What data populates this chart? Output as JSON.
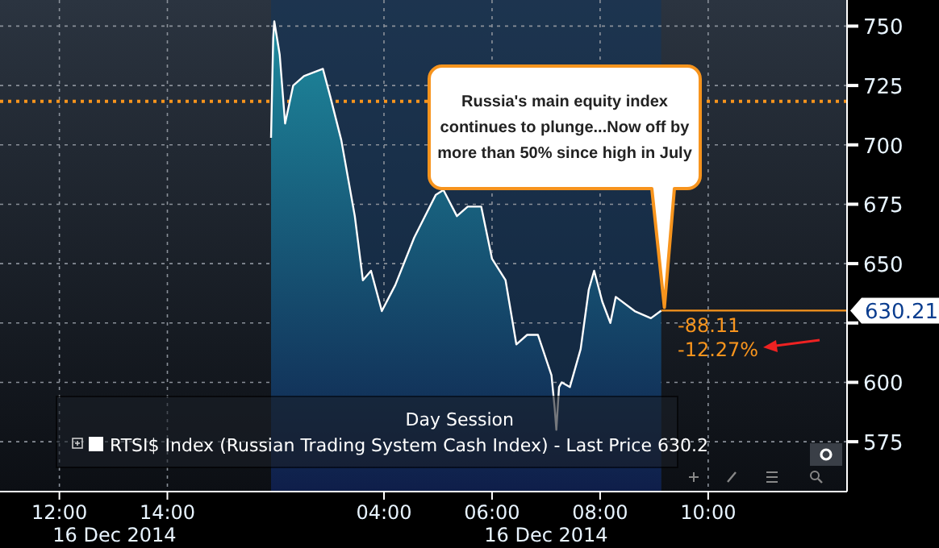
{
  "chart_data": [
    {
      "type": "area",
      "xlim": [
        10.9,
        15.92
      ],
      "xticks": [
        {
          "value": 12,
          "label": "12:00"
        },
        {
          "value": 14,
          "label": "14:00"
        }
      ],
      "ylim": [
        554,
        761
      ],
      "yticks": [
        575,
        600,
        625,
        650,
        675,
        700,
        725,
        750
      ],
      "tick_labels": "x",
      "grid": true,
      "ref_lines": [
        {
          "axis": "y",
          "value": 718.32,
          "color": "#f7941d",
          "line_style": "dotted"
        }
      ],
      "annotations": [
        "16 Dec 2014"
      ]
    },
    {
      "type": "area",
      "x": [
        1.91,
        1.95,
        1.97,
        2.07,
        2.17,
        2.32,
        2.52,
        2.87,
        3.01,
        3.21,
        3.46,
        3.61,
        3.76,
        3.96,
        4.21,
        4.56,
        4.96,
        5.1,
        5.35,
        5.55,
        5.8,
        6.0,
        6.25,
        6.45,
        6.65,
        6.85,
        7.1,
        7.16,
        7.19,
        7.24,
        7.29,
        7.44,
        7.64,
        7.79,
        7.89,
        8.04,
        8.19,
        8.29,
        8.64,
        8.94,
        9.13
      ],
      "series": [
        {
          "name": "RTSI$ Index (Russian Trading System Cash Index) - Last Price 630.2",
          "color": "#ffffff",
          "values": [
            703,
            745,
            752,
            738,
            709,
            725,
            729,
            732,
            720,
            702,
            670,
            643,
            647,
            630,
            641,
            661,
            679,
            681,
            670,
            674,
            674,
            652,
            643,
            616,
            620,
            620,
            603,
            589,
            580,
            598,
            600,
            598,
            614,
            639,
            647,
            634,
            625,
            636,
            630,
            627,
            630.21
          ]
        }
      ],
      "xlim": [
        1.91,
        12.57
      ],
      "xticks": [
        {
          "value": 4,
          "label": "04:00"
        },
        {
          "value": 6,
          "label": "06:00"
        },
        {
          "value": 8,
          "label": "08:00"
        },
        {
          "value": 10,
          "label": "10:00"
        }
      ],
      "ylim": [
        554,
        761
      ],
      "yticks": [
        575,
        600,
        {
          "value": 625,
          "label": null
        },
        650,
        675,
        700,
        725,
        750
      ],
      "grid": true,
      "legend": "bottom",
      "bands": [
        {
          "axis": "x",
          "from": 1.91,
          "to": 9.13,
          "label": "Day Session",
          "color": "#14355a"
        }
      ],
      "ref_lines": [
        {
          "axis": "y",
          "value": 718.32,
          "color": "#f7941d",
          "line_style": "dotted"
        },
        {
          "axis": "y",
          "value": 630.21,
          "label": "630.21",
          "color": "#f7941d",
          "line_style": "solid"
        }
      ],
      "annotations": [
        "Russia's main equity index continues to plunge...Now off by more than 50% since high in July",
        "-88.11",
        "-12.27%",
        "16 Dec 2014"
      ]
    }
  ]
}
